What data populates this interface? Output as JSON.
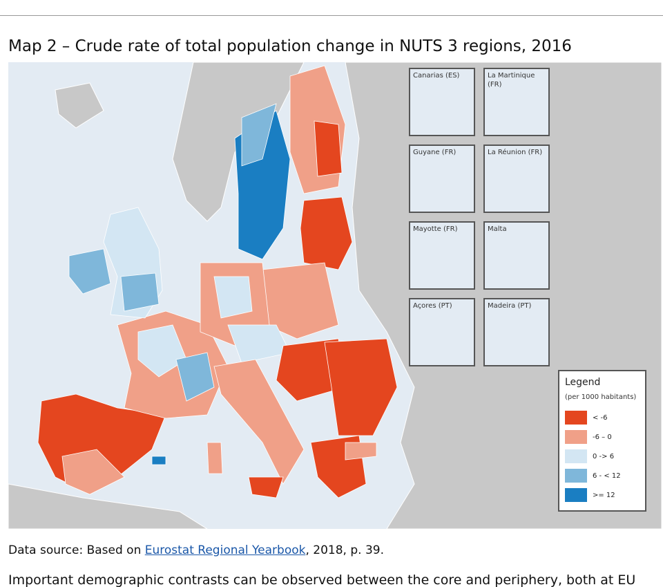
{
  "title": "Map 2 – Crude rate of total population change in NUTS 3 regions, 2016",
  "insets": [
    "Canarias (ES)",
    "La Martinique (FR)",
    "Guyane (FR)",
    "La Réunion (FR)",
    "Mayotte (FR)",
    "Malta",
    "Açores (PT)",
    "Madeira (PT)"
  ],
  "legend": {
    "title": "Legend",
    "subtitle": "(per 1000 habitants)",
    "items": [
      {
        "label": "< -6",
        "color": "#e4461f"
      },
      {
        "label": "-6 – 0",
        "color": "#f0a088"
      },
      {
        "label": "0 -> 6",
        "color": "#d3e6f3"
      },
      {
        "label": "6 - < 12",
        "color": "#7fb7da"
      },
      {
        "label": ">= 12",
        "color": "#1a7ec2"
      }
    ]
  },
  "source": {
    "prefix": "Data source: Based on ",
    "link": "Eurostat Regional Yearbook",
    "suffix": ", 2018, p. 39."
  },
  "body": "Important demographic contrasts can be observed between the core and periphery, both at EU"
}
